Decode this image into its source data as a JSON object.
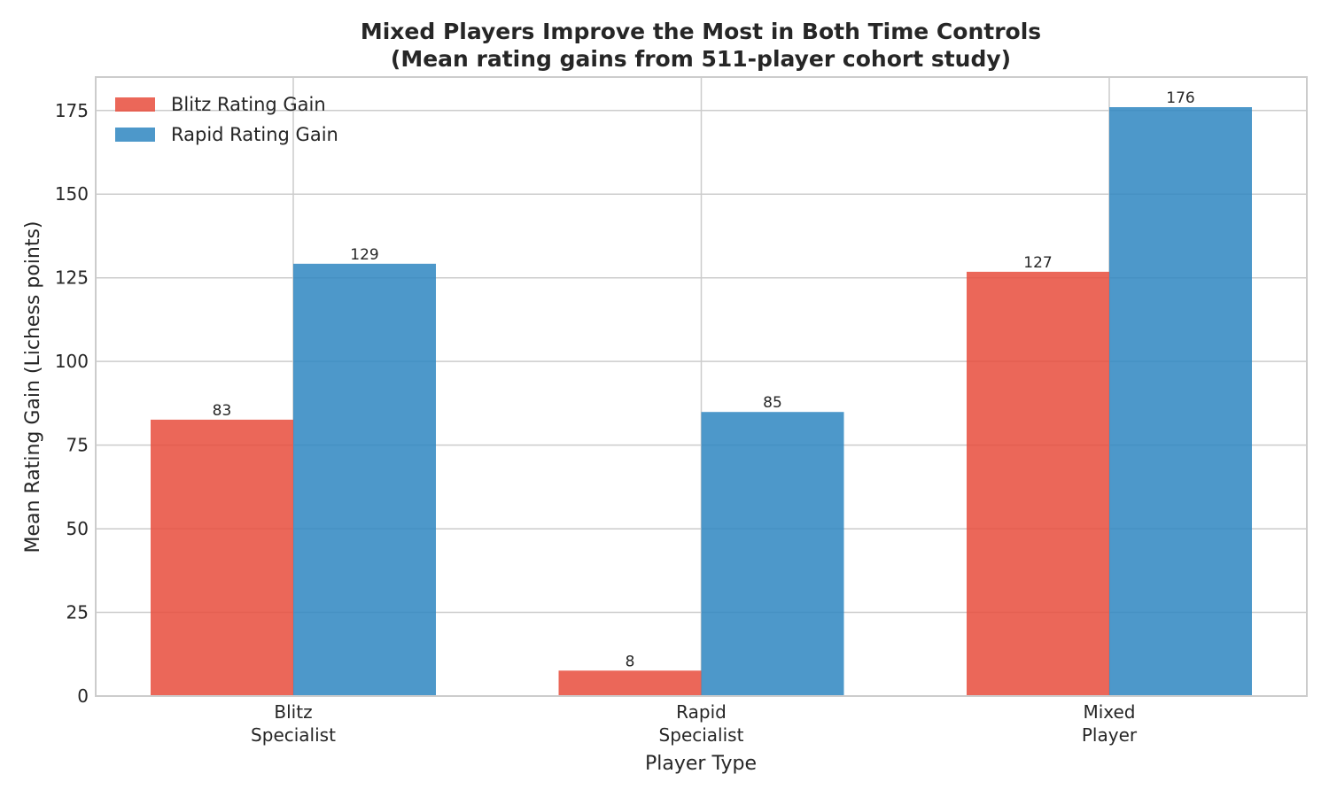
{
  "chart_data": {
    "type": "bar",
    "title": [
      "Mixed Players Improve the Most in Both Time Controls",
      "(Mean rating gains from 511-player cohort study)"
    ],
    "xlabel": "Player Type",
    "ylabel": "Mean Rating Gain (Lichess points)",
    "categories": [
      [
        "Blitz",
        "Specialist"
      ],
      [
        "Rapid",
        "Specialist"
      ],
      [
        "Mixed",
        "Player"
      ]
    ],
    "series": [
      {
        "name": "Blitz Rating Gain",
        "values": [
          82.6,
          7.6,
          126.8
        ],
        "labels": [
          "83",
          "8",
          "127"
        ],
        "color": "#e74c3c"
      },
      {
        "name": "Rapid Rating Gain",
        "values": [
          129.2,
          84.9,
          176.0
        ],
        "labels": [
          "129",
          "85",
          "176"
        ],
        "color": "#2e86c1"
      }
    ],
    "ylim": [
      0,
      185
    ],
    "yticks": [
      0,
      25,
      50,
      75,
      100,
      125,
      150,
      175
    ],
    "grid": true,
    "legend_position": "top-left"
  }
}
